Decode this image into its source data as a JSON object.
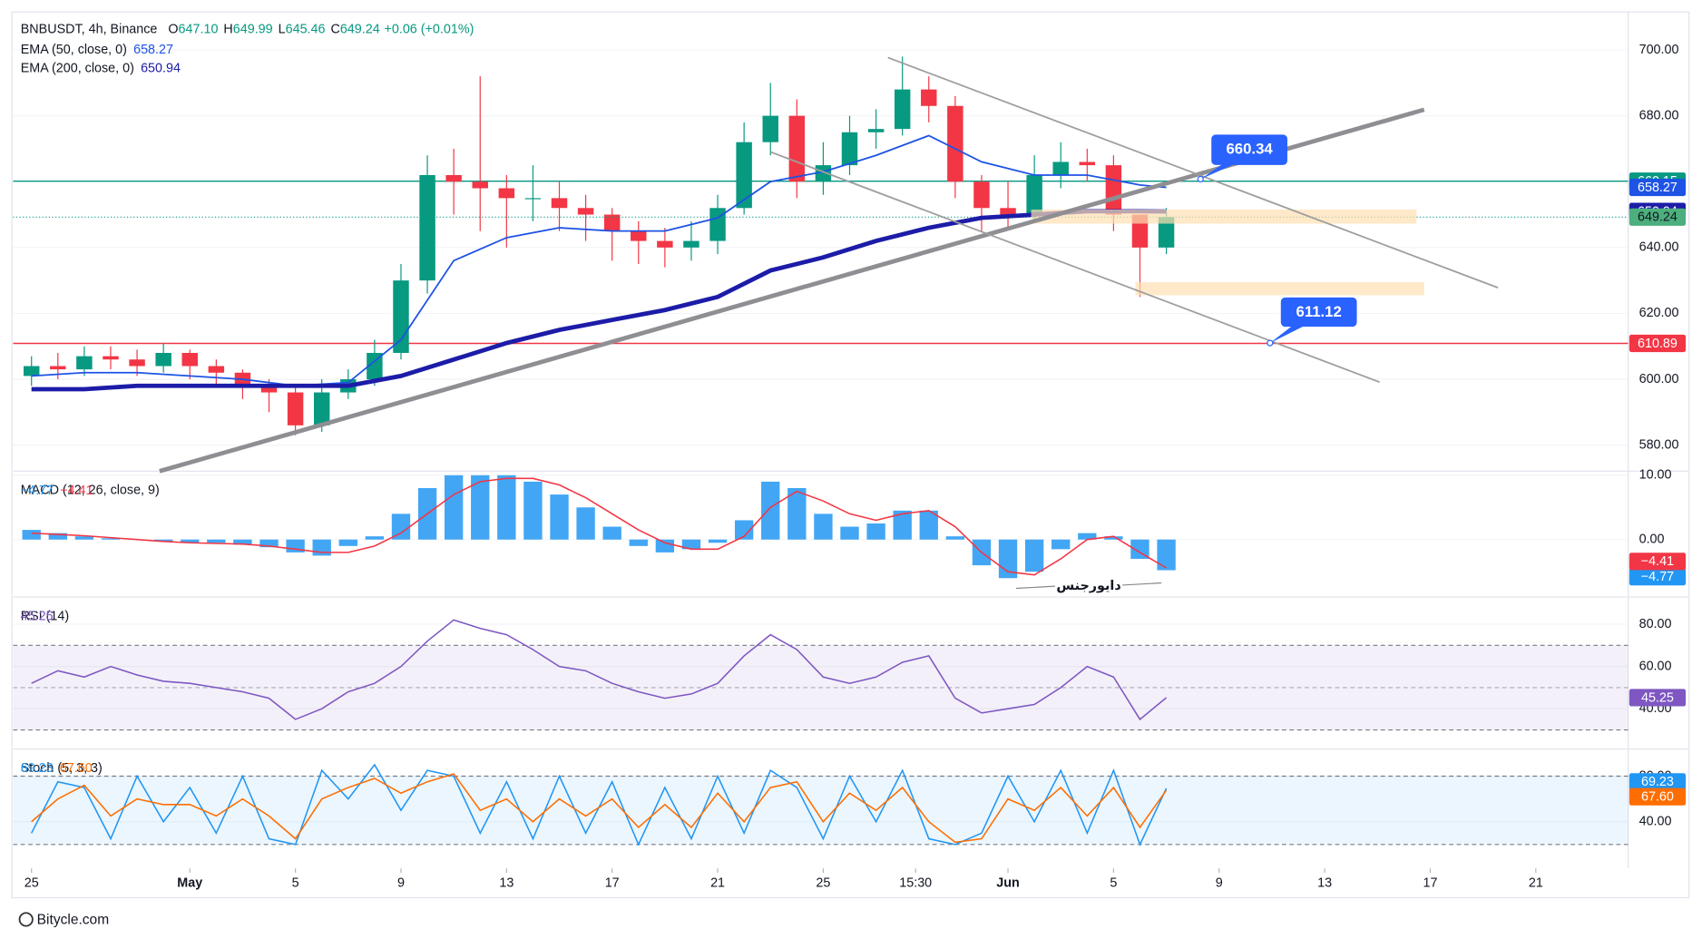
{
  "header": {
    "symbol": "BNBUSDT, 4h, Binance",
    "ohlc": [
      {
        "label": "O",
        "value": "647.10"
      },
      {
        "label": "H",
        "value": "649.99"
      },
      {
        "label": "L",
        "value": "645.46"
      },
      {
        "label": "C",
        "value": "649.24"
      }
    ],
    "change": "+0.06 (+0.01%)"
  },
  "footer": "Bitycle.com",
  "chart_data": [
    {
      "type": "candlestick",
      "up_color": "#089981",
      "down_color": "#f23645",
      "x": [
        0,
        1,
        2,
        3,
        4,
        5,
        6,
        7,
        8,
        9,
        10,
        11,
        12,
        13,
        14,
        15,
        16,
        17,
        18,
        19,
        20,
        21,
        22,
        23,
        24,
        25,
        26,
        27,
        28,
        29,
        30,
        31,
        32,
        33,
        34,
        35,
        36,
        37,
        38,
        39,
        40,
        41,
        42,
        43
      ],
      "open": [
        601,
        604,
        603,
        607,
        606,
        604,
        608,
        604,
        602,
        598,
        596,
        586,
        596,
        600,
        608,
        630,
        662,
        660,
        658,
        655,
        655,
        652,
        650,
        645,
        642,
        640,
        642,
        652,
        672,
        680,
        660,
        665,
        675,
        676,
        688,
        683,
        660,
        652,
        650,
        662,
        666,
        665,
        650,
        640
      ],
      "high": [
        607,
        608,
        610,
        610,
        609,
        611,
        609,
        606,
        603,
        600,
        598,
        600,
        603,
        612,
        635,
        668,
        670,
        692,
        662,
        665,
        660,
        656,
        652,
        648,
        646,
        648,
        656,
        678,
        690,
        685,
        672,
        680,
        682,
        698,
        692,
        686,
        662,
        660,
        668,
        672,
        670,
        668,
        650,
        652
      ],
      "low": [
        598,
        600,
        601,
        603,
        601,
        602,
        600,
        598,
        594,
        590,
        583,
        584,
        594,
        598,
        606,
        626,
        650,
        645,
        640,
        648,
        645,
        642,
        636,
        635,
        634,
        636,
        638,
        650,
        668,
        655,
        656,
        662,
        670,
        674,
        678,
        655,
        645,
        646,
        648,
        658,
        660,
        645,
        625,
        638
      ],
      "close": [
        604,
        603,
        607,
        606,
        604,
        608,
        604,
        602,
        598,
        596,
        586,
        596,
        600,
        608,
        630,
        662,
        660,
        658,
        655,
        655,
        652,
        650,
        645,
        642,
        640,
        642,
        652,
        672,
        680,
        660,
        665,
        675,
        676,
        688,
        683,
        660,
        652,
        650,
        662,
        666,
        665,
        650,
        640,
        649.24
      ],
      "series": [
        {
          "name": "EMA (50, close, 0)",
          "color": "#1e53e5",
          "width": 1.5,
          "x": [
            0,
            2,
            4,
            6,
            8,
            10,
            12,
            14,
            16,
            18,
            20,
            22,
            24,
            26,
            28,
            30,
            32,
            34,
            36,
            38,
            40,
            42,
            43
          ],
          "values": [
            601,
            602,
            602,
            601,
            600,
            598,
            599,
            612,
            636,
            643,
            646,
            645,
            645,
            649,
            660,
            663,
            668,
            674,
            666,
            662,
            662,
            659,
            658.27
          ]
        },
        {
          "name": "EMA (200, close, 0)",
          "color": "#1c1ca8",
          "width": 4,
          "x": [
            0,
            2,
            4,
            6,
            8,
            10,
            12,
            14,
            16,
            18,
            20,
            22,
            24,
            26,
            28,
            30,
            32,
            34,
            36,
            38,
            40,
            42,
            43
          ],
          "values": [
            597,
            597,
            598,
            598,
            598,
            598,
            598,
            601,
            606,
            611,
            615,
            618,
            621,
            625,
            633,
            637,
            642,
            646,
            649,
            650,
            651,
            651,
            650.94
          ]
        }
      ],
      "levels": [
        {
          "value": 660.15,
          "color": "#089981"
        },
        {
          "value": 610.89,
          "color": "#f23645"
        }
      ],
      "last_color": "#4caf7d",
      "callouts": [
        {
          "value": 660.34
        },
        {
          "value": 611.12
        }
      ],
      "xlim": [
        -0.7,
        60.5
      ],
      "xticks": [
        {
          "value": 0,
          "label": "25"
        },
        {
          "value": 6,
          "label": "May"
        },
        {
          "value": 10,
          "label": "5"
        },
        {
          "value": 14,
          "label": "9"
        },
        {
          "value": 18,
          "label": "13"
        },
        {
          "value": 22,
          "label": "17"
        },
        {
          "value": 26,
          "label": "21"
        },
        {
          "value": 30,
          "label": "25"
        },
        {
          "value": 33.5,
          "label": "15:30"
        },
        {
          "value": 37,
          "label": "Jun"
        },
        {
          "value": 41,
          "label": "5"
        },
        {
          "value": 45,
          "label": "9"
        },
        {
          "value": 49,
          "label": "13"
        },
        {
          "value": 53,
          "label": "17"
        },
        {
          "value": 57,
          "label": "21"
        }
      ],
      "ylim": [
        572.1,
        711.2
      ],
      "yticks": [
        {
          "value": 580,
          "label": "580.00"
        },
        {
          "value": 600,
          "label": "600.00"
        },
        {
          "value": 620,
          "label": "620.00"
        },
        {
          "value": 640,
          "label": "640.00"
        },
        {
          "value": 660,
          "label": "660.00"
        },
        {
          "value": 680,
          "label": "680.00"
        },
        {
          "value": 700,
          "label": "700.00"
        }
      ]
    },
    {
      "type": "bar",
      "title": "MACD (12, 26, close, 9)",
      "x": [
        0,
        1,
        2,
        3,
        4,
        5,
        6,
        7,
        8,
        9,
        10,
        11,
        12,
        13,
        14,
        15,
        16,
        17,
        18,
        19,
        20,
        21,
        22,
        23,
        24,
        25,
        26,
        27,
        28,
        29,
        30,
        31,
        32,
        33,
        34,
        35,
        36,
        37,
        38,
        39,
        40,
        41,
        42,
        43
      ],
      "series": [
        {
          "type": "bar",
          "color": "#2196f3",
          "last_label": "−4.77",
          "values": [
            1.5,
            1,
            0.5,
            0.2,
            0,
            -0.3,
            -0.5,
            -0.5,
            -0.8,
            -1.2,
            -2,
            -2.5,
            -1,
            0.5,
            4,
            8,
            10,
            10,
            10,
            9,
            7,
            5,
            2,
            -1,
            -2,
            -1.5,
            -0.5,
            3,
            9,
            8,
            4,
            2,
            2.5,
            4.5,
            4.5,
            0.5,
            -4,
            -6,
            -5,
            -1.5,
            1,
            0.5,
            -3,
            -4.77
          ]
        },
        {
          "type": "line",
          "color": "#f23645",
          "last_label": "−4.41",
          "values": [
            1,
            0.8,
            0.6,
            0.3,
            0,
            -0.3,
            -0.5,
            -0.6,
            -0.7,
            -1,
            -1.5,
            -2,
            -2,
            -1,
            1,
            4,
            7,
            9,
            9.5,
            9.5,
            8.5,
            6.5,
            4,
            1.5,
            -0.5,
            -1.5,
            -1.5,
            0.5,
            5,
            7.5,
            6,
            4,
            3,
            4,
            4.5,
            2,
            -2,
            -5,
            -5.5,
            -3,
            0,
            0.5,
            -2,
            -4.41
          ]
        }
      ],
      "annotation": "دایورجنس",
      "ylim": [
        -8.6,
        10.3
      ],
      "yticks": [
        {
          "value": 0,
          "label": "0.00"
        },
        {
          "value": 10,
          "label": "10.00"
        }
      ]
    },
    {
      "type": "line",
      "title": "RSI (14)",
      "x": [
        0,
        1,
        2,
        3,
        4,
        5,
        6,
        7,
        8,
        9,
        10,
        11,
        12,
        13,
        14,
        15,
        16,
        17,
        18,
        19,
        20,
        21,
        22,
        23,
        24,
        25,
        26,
        27,
        28,
        29,
        30,
        31,
        32,
        33,
        34,
        35,
        36,
        37,
        38,
        39,
        40,
        41,
        42,
        43
      ],
      "series": [
        {
          "type": "line",
          "color": "#7e57c2",
          "values": [
            52,
            58,
            55,
            60,
            56,
            53,
            52,
            50,
            48,
            45,
            35,
            40,
            48,
            52,
            60,
            72,
            82,
            78,
            75,
            68,
            60,
            58,
            52,
            48,
            45,
            47,
            52,
            65,
            75,
            68,
            55,
            52,
            55,
            62,
            65,
            45,
            38,
            40,
            42,
            50,
            60,
            55,
            35,
            45.25
          ]
        }
      ],
      "bands": [
        30,
        70
      ],
      "midline": 50,
      "band_color": "#7e57c2",
      "ylim": [
        22,
        91.8
      ],
      "yticks": [
        {
          "value": 40,
          "label": "40.00"
        },
        {
          "value": 60,
          "label": "60.00"
        },
        {
          "value": 80,
          "label": "80.00"
        }
      ]
    },
    {
      "type": "line",
      "title": "Stoch (5, 3, 3)",
      "x": [
        0,
        1,
        2,
        3,
        4,
        5,
        6,
        7,
        8,
        9,
        10,
        11,
        12,
        13,
        14,
        15,
        16,
        17,
        18,
        19,
        20,
        21,
        22,
        23,
        24,
        25,
        26,
        27,
        28,
        29,
        30,
        31,
        32,
        33,
        34,
        35,
        36,
        37,
        38,
        39,
        40,
        41,
        42,
        43
      ],
      "series": [
        {
          "type": "line",
          "color": "#2196f3",
          "values": [
            30,
            75,
            70,
            25,
            80,
            40,
            70,
            30,
            80,
            25,
            20,
            85,
            60,
            90,
            50,
            85,
            80,
            30,
            75,
            25,
            80,
            30,
            75,
            20,
            70,
            25,
            80,
            30,
            85,
            70,
            25,
            80,
            40,
            85,
            25,
            20,
            30,
            80,
            40,
            85,
            30,
            85,
            20,
            69.23
          ]
        },
        {
          "type": "line",
          "color": "#ff6d00",
          "last_label": "67.60",
          "values": [
            40,
            60,
            72,
            45,
            60,
            55,
            55,
            45,
            60,
            45,
            25,
            60,
            70,
            78,
            65,
            75,
            82,
            50,
            60,
            40,
            60,
            45,
            60,
            35,
            55,
            35,
            65,
            40,
            70,
            75,
            40,
            65,
            50,
            70,
            40,
            22,
            25,
            60,
            50,
            70,
            45,
            70,
            35,
            67.6
          ]
        }
      ],
      "bands": [
        20,
        80
      ],
      "band_color": "#2196f3",
      "ylim": [
        -1,
        101.9
      ],
      "yticks": [
        {
          "value": 40,
          "label": "40.00"
        },
        {
          "value": 80,
          "label": "80.00"
        }
      ]
    }
  ]
}
